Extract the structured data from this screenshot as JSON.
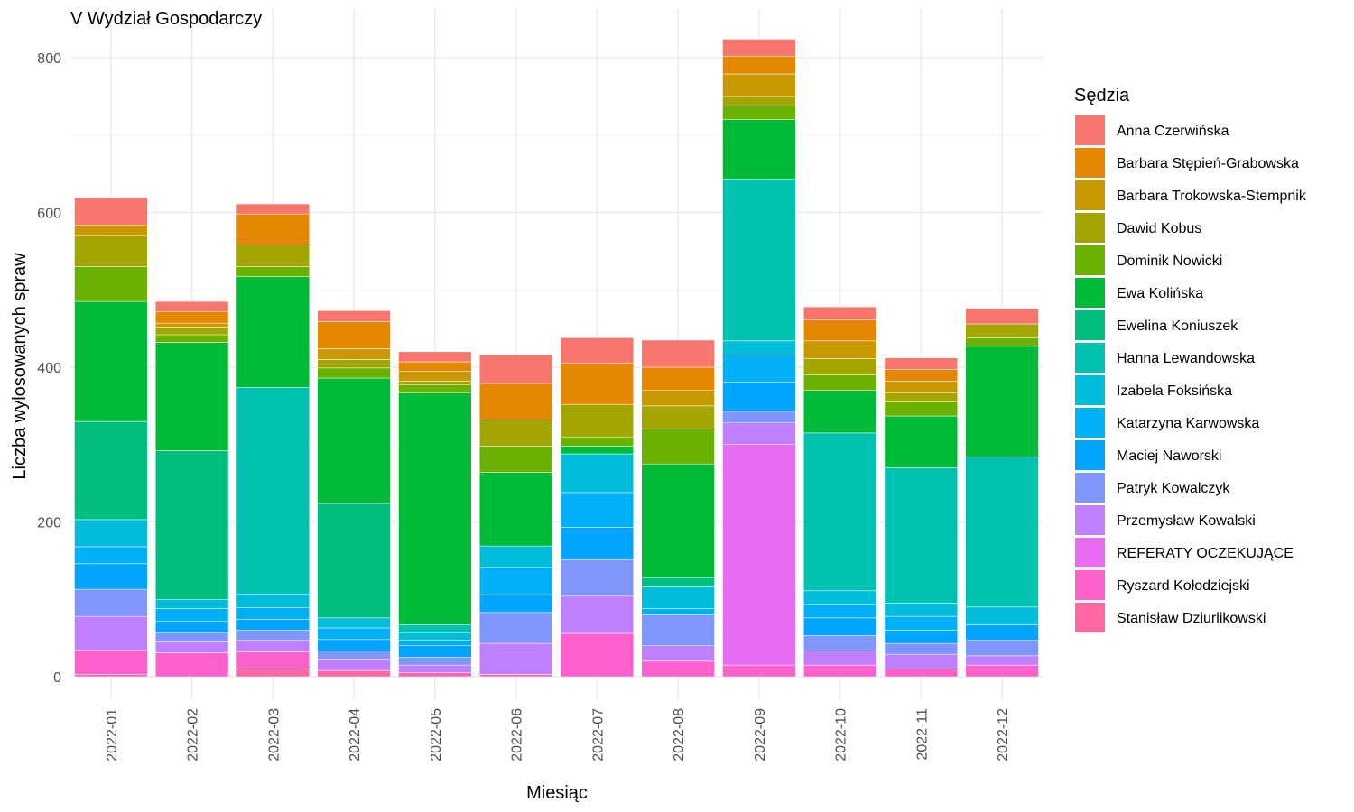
{
  "chart_data": {
    "type": "bar",
    "stacked": true,
    "title": "V Wydział Gospodarczy",
    "xlabel": "Miesiąc",
    "ylabel": "Liczba wylosowanych spraw",
    "ylim": [
      0,
      820
    ],
    "y_ticks": [
      0,
      200,
      400,
      600,
      800
    ],
    "grid": true,
    "legend_title": "Sędzia",
    "legend_position": "right",
    "categories": [
      "2022-01",
      "2022-02",
      "2022-03",
      "2022-04",
      "2022-05",
      "2022-06",
      "2022-07",
      "2022-08",
      "2022-09",
      "2022-10",
      "2022-11",
      "2022-12"
    ],
    "series": [
      {
        "name": "Anna Czerwińska",
        "color": "#F8766D",
        "values": [
          35,
          13,
          13,
          14,
          13,
          37,
          33,
          35,
          22,
          17,
          15,
          20
        ]
      },
      {
        "name": "Barbara Stępień-Grabowska",
        "color": "#E58700",
        "values": [
          0,
          15,
          40,
          35,
          12,
          47,
          53,
          30,
          23,
          27,
          15,
          0
        ]
      },
      {
        "name": "Barbara Trokowska-Stempnik",
        "color": "#C99800",
        "values": [
          14,
          5,
          0,
          14,
          13,
          0,
          0,
          20,
          29,
          23,
          15,
          0
        ]
      },
      {
        "name": "Dawid Kobus",
        "color": "#A3A500",
        "values": [
          40,
          10,
          28,
          11,
          5,
          34,
          42,
          30,
          12,
          21,
          12,
          18
        ]
      },
      {
        "name": "Dominik Nowicki",
        "color": "#6BB100",
        "values": [
          45,
          10,
          13,
          13,
          10,
          34,
          12,
          45,
          18,
          20,
          18,
          11
        ]
      },
      {
        "name": "Ewa Kolińska",
        "color": "#00BA38",
        "values": [
          155,
          140,
          143,
          162,
          300,
          95,
          10,
          147,
          77,
          55,
          67,
          143
        ]
      },
      {
        "name": "Ewelina Koniuszek",
        "color": "#00BF7D",
        "values": [
          127,
          192,
          0,
          148,
          0,
          0,
          0,
          12,
          0,
          0,
          0,
          0
        ]
      },
      {
        "name": "Hanna Lewandowska",
        "color": "#00C0AF",
        "values": [
          0,
          0,
          267,
          0,
          10,
          0,
          0,
          0,
          209,
          204,
          175,
          194
        ]
      },
      {
        "name": "Izabela Foksińska",
        "color": "#00BCD8",
        "values": [
          35,
          12,
          18,
          13,
          10,
          28,
          50,
          28,
          18,
          18,
          17,
          23
        ]
      },
      {
        "name": "Katarzyna Karwowska",
        "color": "#00B0F6",
        "values": [
          22,
          16,
          15,
          15,
          7,
          35,
          45,
          8,
          35,
          17,
          18,
          0
        ]
      },
      {
        "name": "Maciej Naworski",
        "color": "#00A5FF",
        "values": [
          33,
          15,
          14,
          15,
          15,
          23,
          42,
          0,
          38,
          23,
          17,
          20
        ]
      },
      {
        "name": "Patryk Kowalczyk",
        "color": "#7F96FF",
        "values": [
          35,
          12,
          13,
          10,
          10,
          40,
          47,
          40,
          15,
          20,
          14,
          20
        ]
      },
      {
        "name": "Przemysław Kowalski",
        "color": "#BF80FF",
        "values": [
          44,
          14,
          15,
          15,
          10,
          40,
          48,
          20,
          28,
          18,
          19,
          12
        ]
      },
      {
        "name": "REFERATY OCZEKUJĄCE",
        "color": "#E76BF3",
        "values": [
          0,
          0,
          0,
          0,
          0,
          0,
          0,
          0,
          285,
          0,
          0,
          0
        ]
      },
      {
        "name": "Ryszard Kołodziejski",
        "color": "#FF61CC",
        "values": [
          31,
          31,
          22,
          0,
          0,
          0,
          56,
          20,
          15,
          15,
          10,
          15
        ]
      },
      {
        "name": "Stanisław Dziurlikowski",
        "color": "#FF67A4",
        "values": [
          3,
          0,
          10,
          8,
          5,
          3,
          0,
          0,
          0,
          0,
          0,
          0
        ]
      }
    ]
  }
}
